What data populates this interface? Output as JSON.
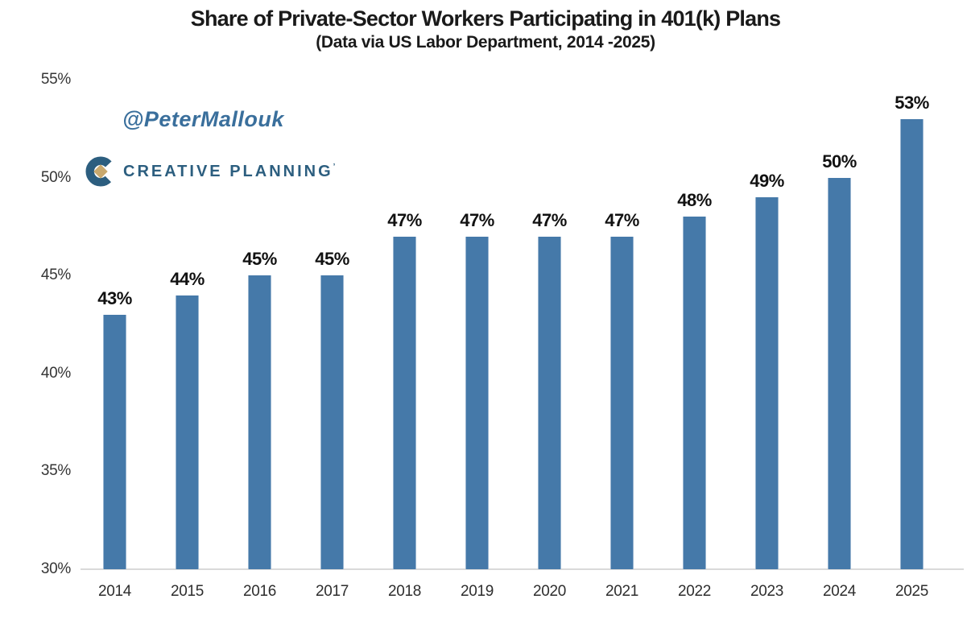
{
  "header": {
    "title": "Share of Private-Sector Workers Participating in 401(k) Plans",
    "subtitle": "(Data via US Labor Department, 2014 -2025)"
  },
  "watermark": {
    "handle": "@PeterMallouk",
    "brand_name": "CREATIVE PLANNING",
    "brand_trademark": "’"
  },
  "colors": {
    "bar": "#4579a9",
    "axis_line": "#d9d9d9",
    "title_text": "#1a1a1a",
    "tick_text": "#353535",
    "value_label_text": "#111111",
    "handle_text": "#3a6f9c",
    "brand_text": "#2c5e7f",
    "brand_icon_blue": "#2c5e7f",
    "brand_icon_gold": "#c9a96e",
    "background": "#ffffff"
  },
  "chart_data": {
    "type": "bar",
    "title": "Share of Private-Sector Workers Participating in 401(k) Plans",
    "subtitle": "(Data via US Labor Department, 2014 -2025)",
    "categories": [
      "2014",
      "2015",
      "2016",
      "2017",
      "2018",
      "2019",
      "2020",
      "2021",
      "2022",
      "2023",
      "2024",
      "2025"
    ],
    "values": [
      43,
      44,
      45,
      45,
      47,
      47,
      47,
      47,
      48,
      49,
      50,
      53
    ],
    "value_labels": [
      "43%",
      "44%",
      "45%",
      "45%",
      "47%",
      "47%",
      "47%",
      "47%",
      "48%",
      "49%",
      "50%",
      "53%"
    ],
    "xlabel": "",
    "ylabel": "",
    "ylim": [
      30,
      55
    ],
    "yticks": [
      30,
      35,
      40,
      45,
      50,
      55
    ],
    "ytick_labels": [
      "30%",
      "35%",
      "40%",
      "45%",
      "50%",
      "55%"
    ],
    "grid": false,
    "legend": false,
    "bar_color": "#4579a9"
  }
}
